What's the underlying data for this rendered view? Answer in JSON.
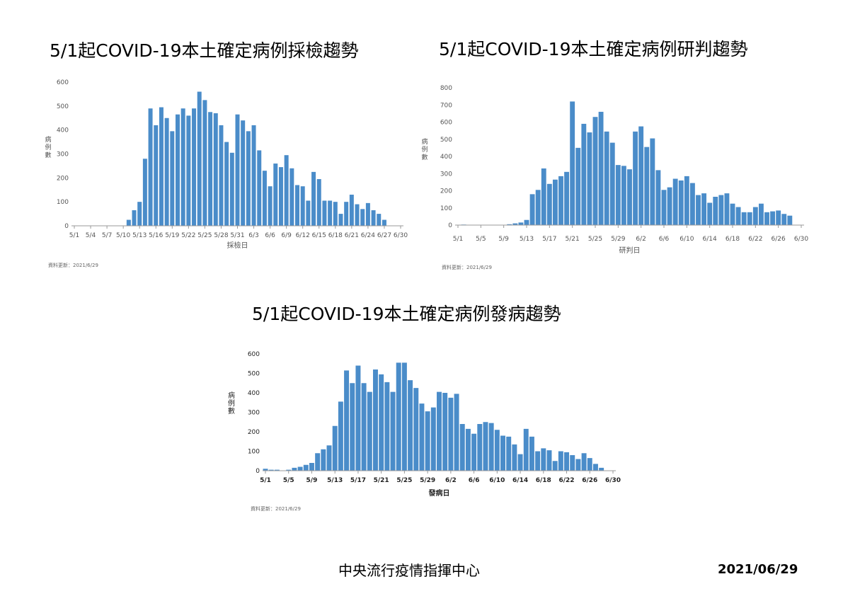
{
  "titles": [
    "5/1起COVID-19本土確定病例採檢趨勢",
    "5/1起COVID-19本土確定病例研判趨勢",
    "5/1起COVID-19本土確定病例發病趨勢"
  ],
  "footer": {
    "org": "中央流行疫情指揮中心",
    "date": "2021/06/29"
  },
  "colors": {
    "bar": "#4a8cc9",
    "axis": "#999999"
  },
  "chart_data": [
    {
      "type": "bar",
      "title": "5/1起COVID-19本土確定病例採檢趨勢",
      "xlabel": "採檢日",
      "ylabel": "病例數",
      "ylim": [
        0,
        600
      ],
      "yticks": [
        0,
        100,
        200,
        300,
        400,
        500,
        600
      ],
      "categories": [
        "5/1",
        "5/2",
        "5/3",
        "5/4",
        "5/5",
        "5/6",
        "5/7",
        "5/8",
        "5/9",
        "5/10",
        "5/11",
        "5/12",
        "5/13",
        "5/14",
        "5/15",
        "5/16",
        "5/17",
        "5/18",
        "5/19",
        "5/20",
        "5/21",
        "5/22",
        "5/23",
        "5/24",
        "5/25",
        "5/26",
        "5/27",
        "5/28",
        "5/29",
        "5/30",
        "5/31",
        "6/1",
        "6/2",
        "6/3",
        "6/4",
        "6/5",
        "6/6",
        "6/7",
        "6/8",
        "6/9",
        "6/10",
        "6/11",
        "6/12",
        "6/13",
        "6/14",
        "6/15",
        "6/16",
        "6/17",
        "6/18",
        "6/19",
        "6/20",
        "6/21",
        "6/22",
        "6/23",
        "6/24",
        "6/25",
        "6/26",
        "6/27",
        "6/28",
        "6/29",
        "6/30"
      ],
      "tick_labels": [
        "5/1",
        "5/4",
        "5/7",
        "5/10",
        "5/13",
        "5/16",
        "5/19",
        "5/22",
        "5/25",
        "5/28",
        "5/31",
        "6/3",
        "6/6",
        "6/9",
        "6/12",
        "6/15",
        "6/18",
        "6/21",
        "6/24",
        "6/27",
        "6/30"
      ],
      "values": [
        0,
        0,
        0,
        0,
        0,
        0,
        0,
        0,
        0,
        0,
        25,
        65,
        100,
        280,
        490,
        420,
        495,
        450,
        395,
        465,
        490,
        460,
        490,
        560,
        525,
        475,
        470,
        420,
        350,
        305,
        465,
        440,
        395,
        420,
        315,
        230,
        165,
        260,
        245,
        295,
        240,
        170,
        165,
        105,
        225,
        195,
        105,
        105,
        100,
        50,
        100,
        130,
        90,
        70,
        95,
        65,
        50,
        25,
        0,
        0,
        0
      ],
      "update": "資料更新：2021/6/29"
    },
    {
      "type": "bar",
      "title": "5/1起COVID-19本土確定病例研判趨勢",
      "xlabel": "研判日",
      "ylabel": "病例數",
      "ylim": [
        0,
        800
      ],
      "yticks": [
        0,
        100,
        200,
        300,
        400,
        500,
        600,
        700,
        800
      ],
      "categories": [
        "5/1",
        "5/2",
        "5/3",
        "5/4",
        "5/5",
        "5/6",
        "5/7",
        "5/8",
        "5/9",
        "5/10",
        "5/11",
        "5/12",
        "5/13",
        "5/14",
        "5/15",
        "5/16",
        "5/17",
        "5/18",
        "5/19",
        "5/20",
        "5/21",
        "5/22",
        "5/23",
        "5/24",
        "5/25",
        "5/26",
        "5/27",
        "5/28",
        "5/29",
        "5/30",
        "5/31",
        "6/1",
        "6/2",
        "6/3",
        "6/4",
        "6/5",
        "6/6",
        "6/7",
        "6/8",
        "6/9",
        "6/10",
        "6/11",
        "6/12",
        "6/13",
        "6/14",
        "6/15",
        "6/16",
        "6/17",
        "6/18",
        "6/19",
        "6/20",
        "6/21",
        "6/22",
        "6/23",
        "6/24",
        "6/25",
        "6/26",
        "6/27",
        "6/28",
        "6/29",
        "6/30"
      ],
      "tick_labels": [
        "5/1",
        "5/5",
        "5/9",
        "5/13",
        "5/17",
        "5/21",
        "5/25",
        "5/29",
        "6/2",
        "6/6",
        "6/10",
        "6/14",
        "6/18",
        "6/22",
        "6/26",
        "6/30"
      ],
      "values": [
        0,
        3,
        0,
        0,
        0,
        0,
        0,
        0,
        0,
        5,
        10,
        15,
        30,
        180,
        205,
        330,
        240,
        265,
        285,
        310,
        720,
        450,
        590,
        540,
        630,
        660,
        545,
        480,
        350,
        345,
        325,
        545,
        575,
        455,
        505,
        320,
        205,
        220,
        270,
        260,
        285,
        245,
        175,
        185,
        130,
        165,
        175,
        185,
        125,
        105,
        75,
        75,
        105,
        125,
        75,
        80,
        85,
        65,
        55,
        0,
        0
      ],
      "update": "資料更新：2021/6/29"
    },
    {
      "type": "bar",
      "title": "5/1起COVID-19本土確定病例發病趨勢",
      "xlabel": "發病日",
      "ylabel": "病例數",
      "ylim": [
        0,
        600
      ],
      "yticks": [
        0,
        100,
        200,
        300,
        400,
        500,
        600
      ],
      "categories": [
        "5/1",
        "5/2",
        "5/3",
        "5/4",
        "5/5",
        "5/6",
        "5/7",
        "5/8",
        "5/9",
        "5/10",
        "5/11",
        "5/12",
        "5/13",
        "5/14",
        "5/15",
        "5/16",
        "5/17",
        "5/18",
        "5/19",
        "5/20",
        "5/21",
        "5/22",
        "5/23",
        "5/24",
        "5/25",
        "5/26",
        "5/27",
        "5/28",
        "5/29",
        "5/30",
        "5/31",
        "6/1",
        "6/2",
        "6/3",
        "6/4",
        "6/5",
        "6/6",
        "6/7",
        "6/8",
        "6/9",
        "6/10",
        "6/11",
        "6/12",
        "6/13",
        "6/14",
        "6/15",
        "6/16",
        "6/17",
        "6/18",
        "6/19",
        "6/20",
        "6/21",
        "6/22",
        "6/23",
        "6/24",
        "6/25",
        "6/26",
        "6/27",
        "6/28",
        "6/29",
        "6/30"
      ],
      "tick_labels": [
        "5/1",
        "5/5",
        "5/9",
        "5/13",
        "5/17",
        "5/21",
        "5/25",
        "5/29",
        "6/2",
        "6/6",
        "6/10",
        "6/14",
        "6/18",
        "6/22",
        "6/26",
        "6/30"
      ],
      "values": [
        10,
        5,
        5,
        0,
        5,
        15,
        20,
        30,
        40,
        90,
        110,
        130,
        230,
        355,
        515,
        450,
        540,
        450,
        405,
        520,
        495,
        455,
        405,
        555,
        555,
        465,
        425,
        345,
        305,
        325,
        405,
        400,
        375,
        395,
        240,
        215,
        190,
        240,
        250,
        245,
        210,
        180,
        175,
        135,
        85,
        215,
        175,
        100,
        115,
        105,
        50,
        100,
        95,
        80,
        60,
        90,
        65,
        35,
        15,
        0,
        0
      ],
      "update": "資料更新：2021/6/29"
    }
  ]
}
